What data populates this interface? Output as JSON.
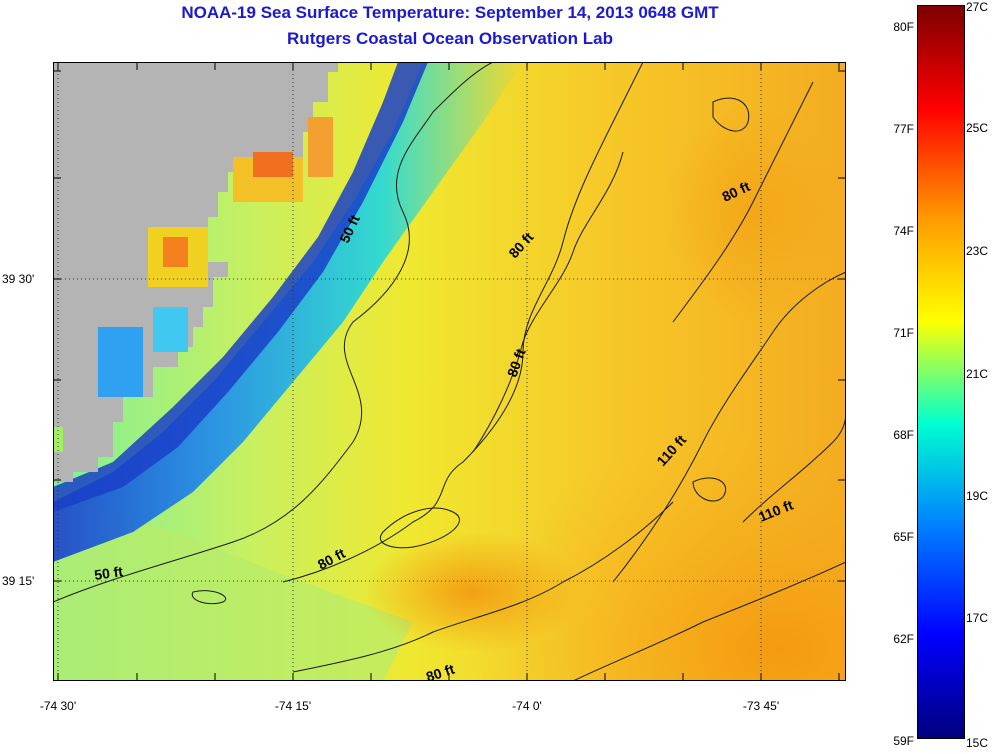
{
  "title": "NOAA-19 Sea Surface Temperature:  September 14, 2013 0648 GMT",
  "subtitle": "Rutgers Coastal Ocean Observation Lab",
  "lat_labels": [
    {
      "text": "39 30'",
      "lat": 39.5
    },
    {
      "text": "39 15'",
      "lat": 39.25
    }
  ],
  "lon_labels": [
    {
      "text": "-74 30'",
      "lon": -74.5
    },
    {
      "text": "-74 15'",
      "lon": -74.25
    },
    {
      "text": "-74 0'",
      "lon": -74.0
    },
    {
      "text": "-73 45'",
      "lon": -73.75
    }
  ],
  "contour_labels": [
    {
      "text": "50 ft"
    },
    {
      "text": "50 ft"
    },
    {
      "text": "80 ft"
    },
    {
      "text": "80 ft"
    },
    {
      "text": "80 ft"
    },
    {
      "text": "80 ft"
    },
    {
      "text": "80 ft"
    },
    {
      "text": "110 ft"
    },
    {
      "text": "110 ft"
    }
  ],
  "colorbar": {
    "fahrenheit": [
      "80F",
      "77F",
      "74F",
      "71F",
      "68F",
      "65F",
      "62F",
      "59F"
    ],
    "celsius": [
      "27C",
      "25C",
      "23C",
      "21C",
      "19C",
      "17C",
      "15C"
    ],
    "colors": [
      "#7d0000",
      "#ff0000",
      "#ff9a00",
      "#ffff00",
      "#00ffd0",
      "#0080ff",
      "#0000ff",
      "#00007d"
    ]
  },
  "colors": {
    "land": "#b4b4b4",
    "title": "#1a1ad0"
  }
}
